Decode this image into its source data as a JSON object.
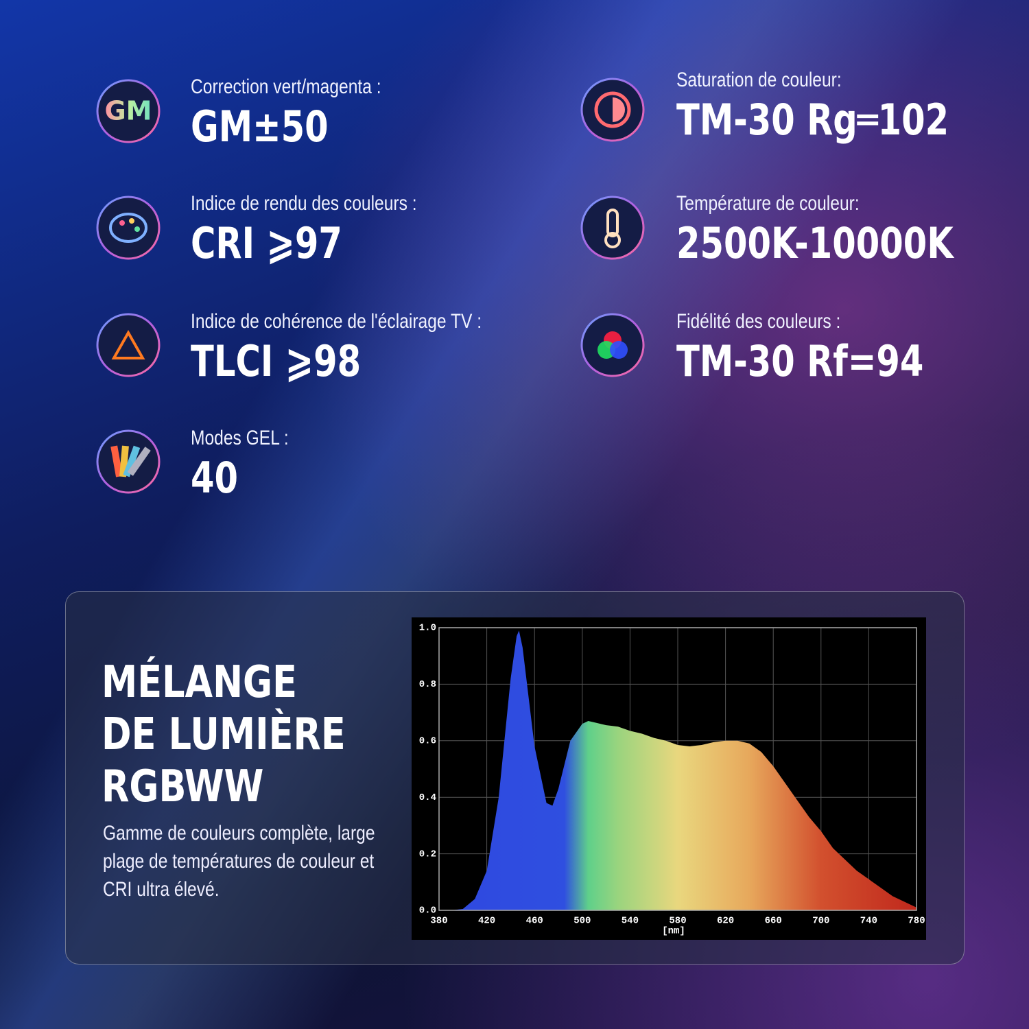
{
  "features": [
    {
      "label": "Correction vert/magenta :",
      "value": "GM±50",
      "icon_text": "GM"
    },
    {
      "label": "Saturation de couleur:",
      "value": "TM-30 Rg═102"
    },
    {
      "label": "Indice de rendu des couleurs :",
      "value": "CRI ⩾97"
    },
    {
      "label": "Température de couleur:",
      "value": "2500K-10000K"
    },
    {
      "label": "Indice de cohérence de l'éclairage TV :",
      "value": "TLCI ⩾98"
    },
    {
      "label": "Fidélité des couleurs :",
      "value": "TM-30 Rf=94"
    },
    {
      "label": "Modes GEL :",
      "value": "40"
    }
  ],
  "panel": {
    "title": [
      "MÉLANGE",
      "DE LUMIÈRE",
      "RGBWW"
    ],
    "description": [
      "Gamme de couleurs complète, large",
      "plage de températures de couleur et",
      "CRI ultra élevé."
    ]
  },
  "chart_data": {
    "type": "area",
    "xlabel": "[nm]",
    "x": [
      380,
      390,
      400,
      410,
      420,
      430,
      440,
      445,
      447,
      450,
      460,
      470,
      475,
      480,
      490,
      500,
      505,
      510,
      520,
      530,
      540,
      550,
      560,
      570,
      580,
      590,
      600,
      610,
      620,
      630,
      640,
      650,
      660,
      670,
      680,
      690,
      700,
      710,
      720,
      730,
      740,
      750,
      760,
      770,
      780
    ],
    "values": [
      0,
      0,
      0.005,
      0.04,
      0.14,
      0.4,
      0.82,
      0.97,
      0.99,
      0.93,
      0.58,
      0.38,
      0.37,
      0.43,
      0.6,
      0.66,
      0.67,
      0.665,
      0.655,
      0.65,
      0.635,
      0.625,
      0.61,
      0.6,
      0.585,
      0.58,
      0.585,
      0.595,
      0.6,
      0.6,
      0.59,
      0.56,
      0.51,
      0.45,
      0.39,
      0.33,
      0.28,
      0.22,
      0.18,
      0.14,
      0.11,
      0.08,
      0.05,
      0.03,
      0.01
    ],
    "xlim": [
      380,
      780
    ],
    "xticks": [
      380,
      420,
      460,
      500,
      540,
      580,
      620,
      660,
      700,
      740,
      780
    ],
    "ylim": [
      0,
      1
    ],
    "yticks": [
      {
        "value": 0,
        "label": "0.0"
      },
      0.2,
      0.4,
      0.6,
      {
        "value": 0.8,
        "label": "0.8"
      },
      {
        "value": 1,
        "label": "1.0"
      }
    ],
    "grid": true,
    "gradient": [
      {
        "nm": 380,
        "color": "#2f48e0"
      },
      {
        "nm": 485,
        "color": "#2f4fe0"
      },
      {
        "nm": 505,
        "color": "#5fd08a"
      },
      {
        "nm": 530,
        "color": "#9ad47e"
      },
      {
        "nm": 580,
        "color": "#e9d77e"
      },
      {
        "nm": 640,
        "color": "#e7a85c"
      },
      {
        "nm": 700,
        "color": "#d2502e"
      },
      {
        "nm": 780,
        "color": "#c0281c"
      }
    ]
  }
}
